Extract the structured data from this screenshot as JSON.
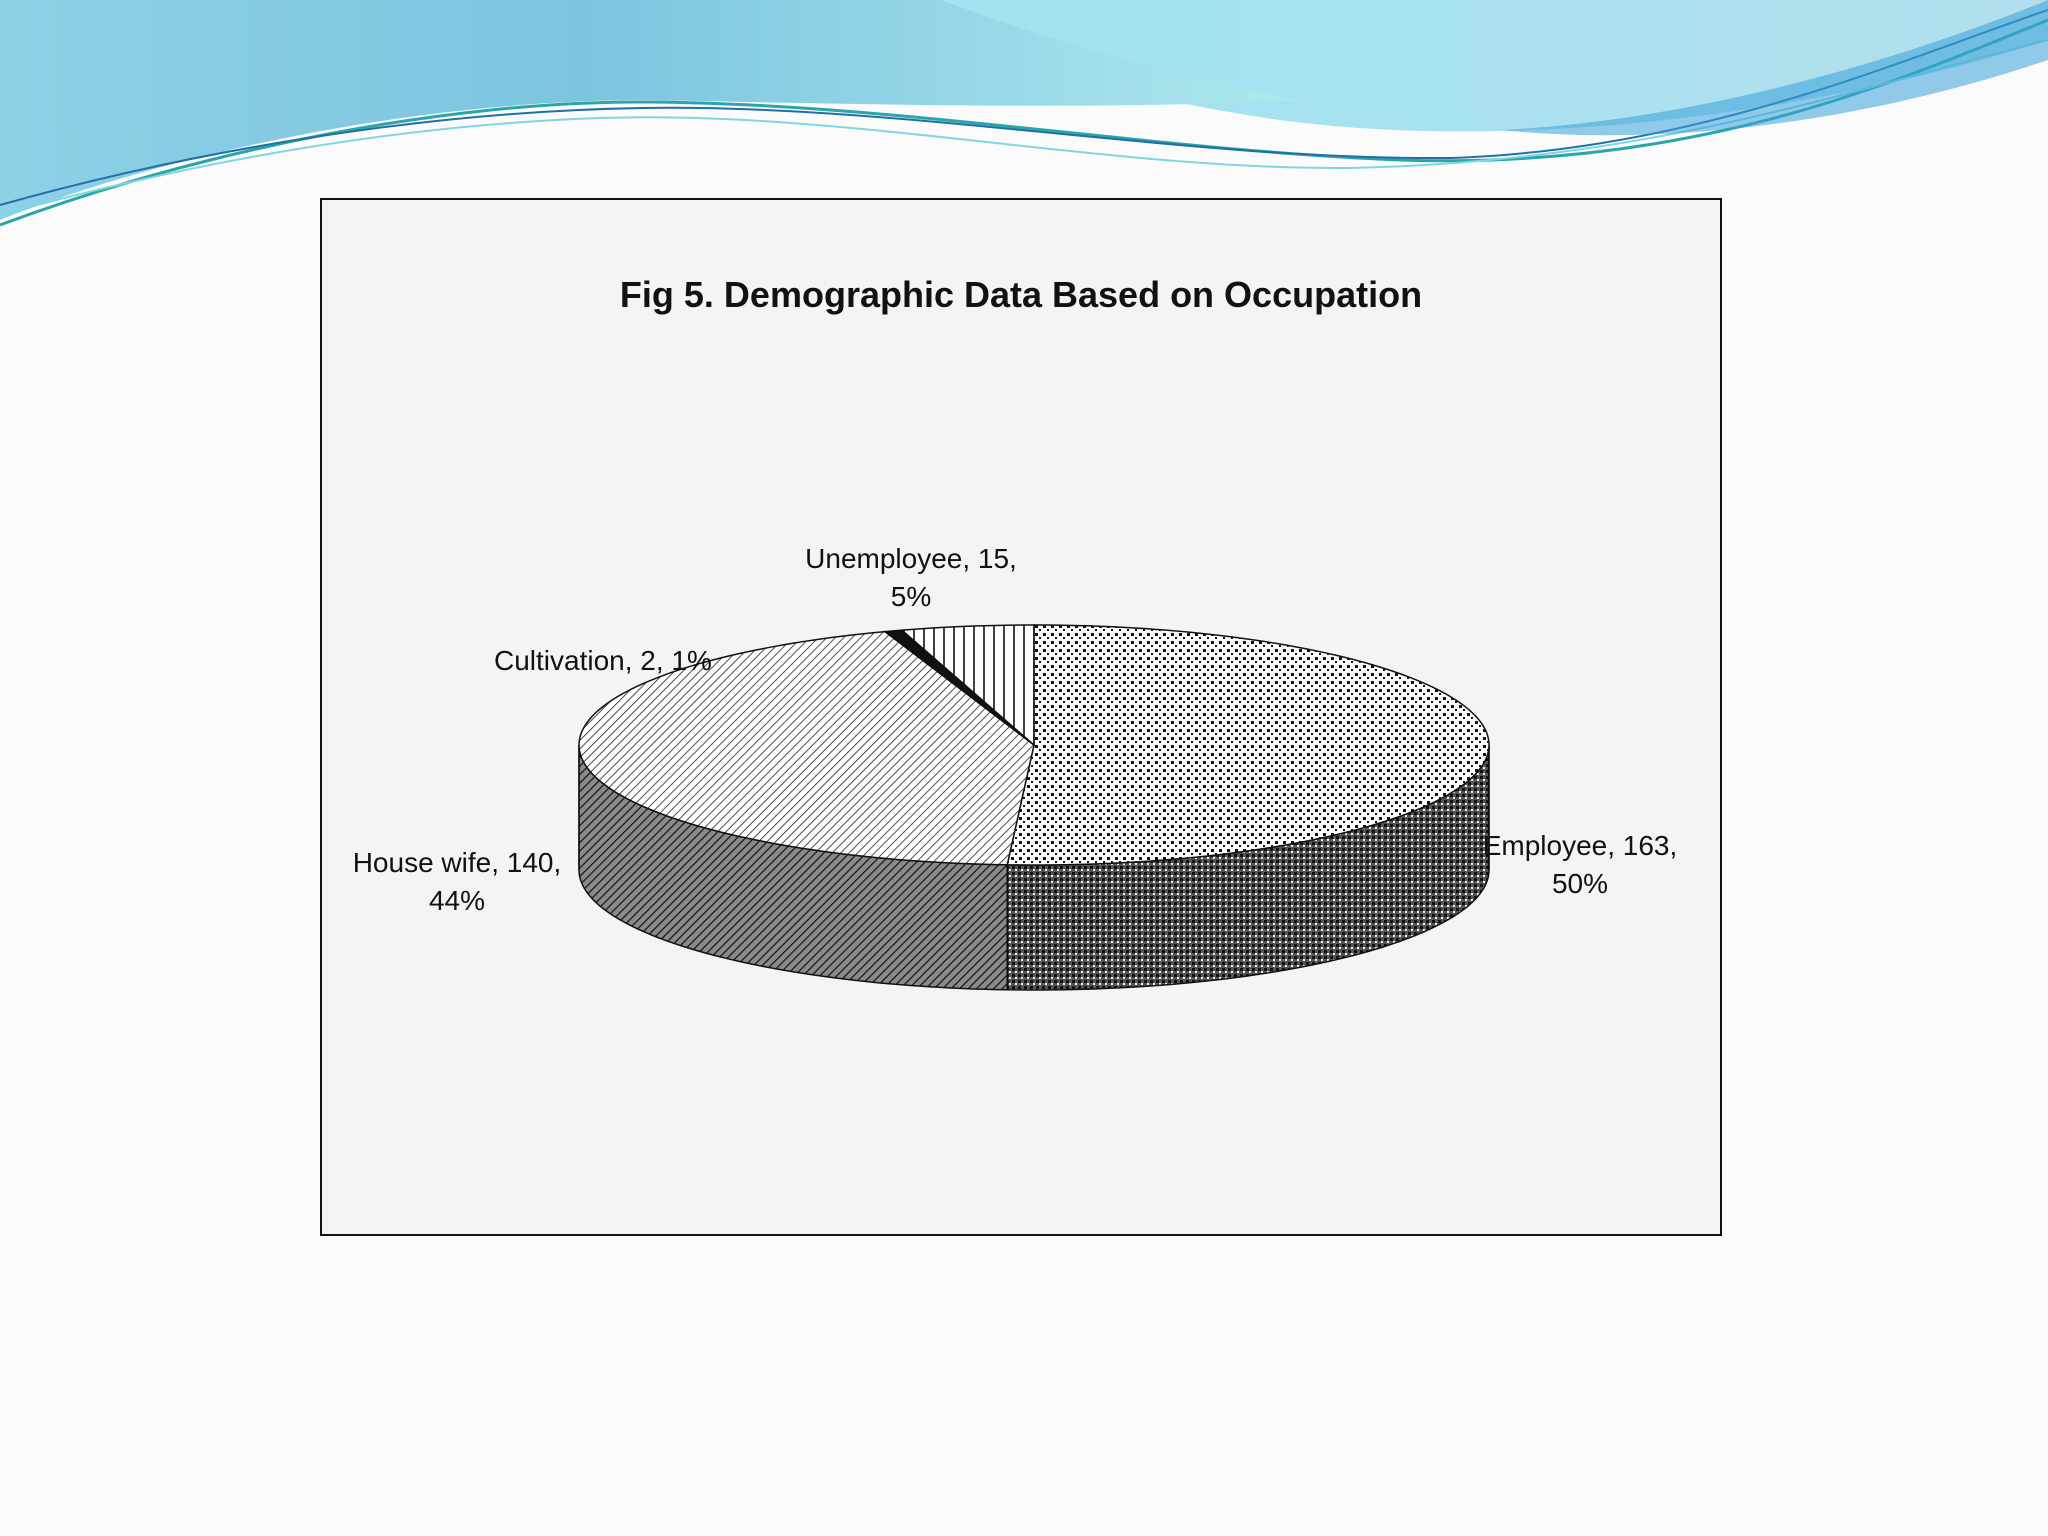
{
  "chart_data": {
    "type": "pie",
    "title": "Fig 5. Demographic Data Based on Occupation",
    "style": "3d",
    "slices": [
      {
        "label": "Employee",
        "value": 163,
        "percent": 50,
        "text": [
          "Employee, 163,",
          "50%"
        ]
      },
      {
        "label": "House wife",
        "value": 140,
        "percent": 44,
        "text": [
          "House wife, 140,",
          "44%"
        ]
      },
      {
        "label": "Cultivation",
        "value": 2,
        "percent": 1,
        "text": [
          "Cultivation, 2, 1%"
        ]
      },
      {
        "label": "Unemployee",
        "value": 15,
        "percent": 5,
        "text": [
          "Unemployee, 15,",
          "5%"
        ]
      }
    ]
  },
  "theme": {
    "wave_colors": [
      "#8ed3e8",
      "#5fc6e0",
      "#2aa6a8",
      "#1f6fa8"
    ],
    "frame_bg": "#f5f4f5"
  }
}
